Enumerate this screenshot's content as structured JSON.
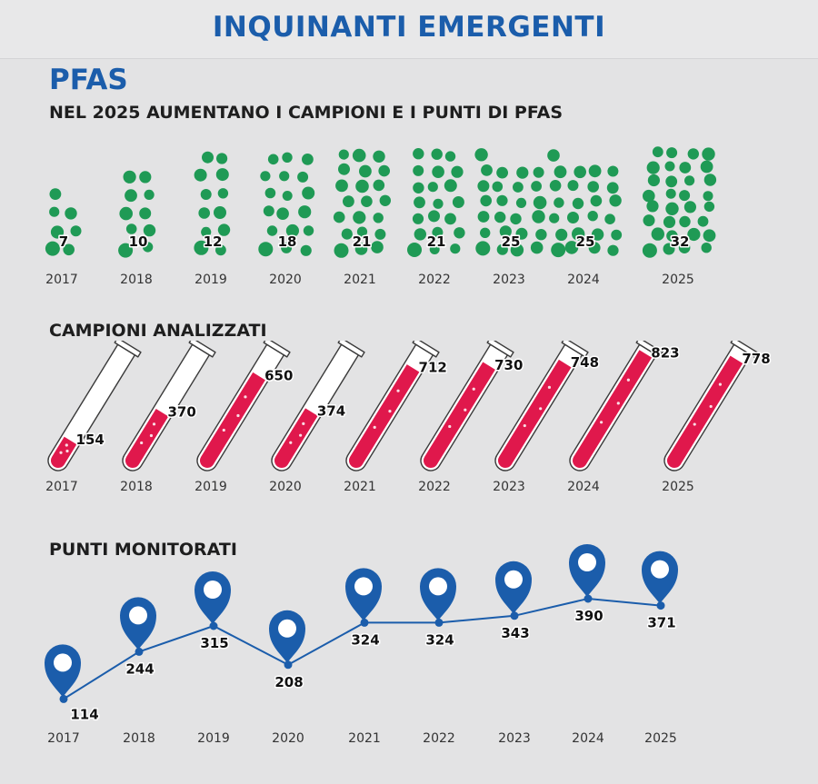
{
  "header": {
    "title": "INQUINANTI EMERGENTI"
  },
  "section": {
    "title": "PFAS",
    "subtitle": "NEL 2025 AUMENTANO I CAMPIONI E I PUNTI DI PFAS"
  },
  "colors": {
    "brand_blue": "#1b5dab",
    "dot_green": "#1f9a55",
    "tube_red": "#e0184c",
    "line_blue": "#1b5dab",
    "background": "#e3e3e4"
  },
  "icons": {
    "tube": "test-tube-icon",
    "pin": "map-pin-icon",
    "dot": "dot-cluster-icon"
  },
  "chart_data": [
    {
      "type": "pictogram",
      "name": "pfas-count",
      "title": "",
      "categories": [
        "2017",
        "2018",
        "2019",
        "2020",
        "2021",
        "2022",
        "2023",
        "2024",
        "2025"
      ],
      "values": [
        7,
        10,
        12,
        18,
        21,
        21,
        25,
        25,
        32
      ]
    },
    {
      "type": "pictogram",
      "name": "campioni-analizzati",
      "title": "CAMPIONI ANALIZZATI",
      "categories": [
        "2017",
        "2018",
        "2019",
        "2020",
        "2021",
        "2022",
        "2023",
        "2024",
        "2025"
      ],
      "values": [
        154,
        370,
        650,
        374,
        712,
        730,
        748,
        823,
        778
      ],
      "ylim": [
        0,
        830
      ]
    },
    {
      "type": "line",
      "name": "punti-monitorati",
      "title": "PUNTI MONITORATI",
      "categories": [
        "2017",
        "2018",
        "2019",
        "2020",
        "2021",
        "2022",
        "2023",
        "2024",
        "2025"
      ],
      "values": [
        114,
        244,
        315,
        208,
        324,
        324,
        343,
        390,
        371
      ],
      "ylim": [
        100,
        400
      ]
    }
  ]
}
